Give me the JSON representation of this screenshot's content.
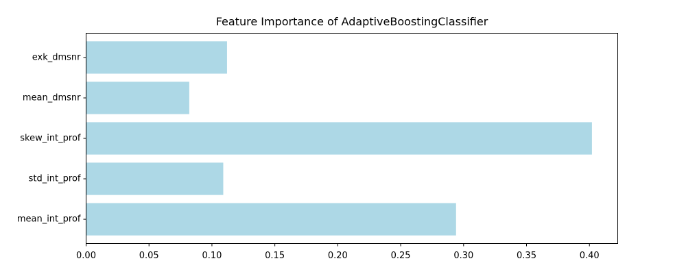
{
  "chart_data": {
    "type": "bar",
    "orientation": "horizontal",
    "title": "Feature Importance of AdaptiveBoostingClassifier",
    "xlabel": "",
    "ylabel": "",
    "categories": [
      "exk_dmsnr",
      "mean_dmsnr",
      "skew_int_prof",
      "std_int_prof",
      "mean_int_prof"
    ],
    "values": [
      0.112,
      0.082,
      0.402,
      0.109,
      0.294
    ],
    "xlim": [
      0.0,
      0.4225
    ],
    "xticks": [
      0.0,
      0.05,
      0.1,
      0.15,
      0.2,
      0.25,
      0.3,
      0.35,
      0.4
    ],
    "xtick_labels": [
      "0.00",
      "0.05",
      "0.10",
      "0.15",
      "0.20",
      "0.25",
      "0.30",
      "0.35",
      "0.40"
    ],
    "bar_color": "#add8e6",
    "grid": false,
    "legend": "none"
  }
}
